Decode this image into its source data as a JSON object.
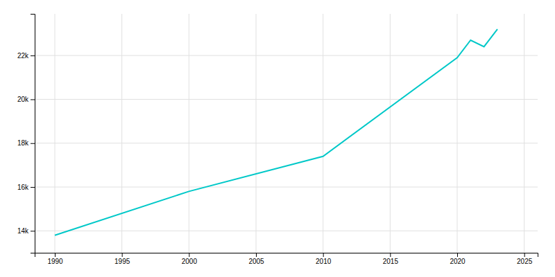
{
  "chart_data": {
    "type": "line",
    "x": [
      1990,
      2000,
      2010,
      2020,
      2021,
      2022,
      2023
    ],
    "values": [
      13800,
      15800,
      17400,
      21900,
      22700,
      22400,
      23200
    ],
    "color": "#00C8C8",
    "xlim": [
      1988.5,
      2026
    ],
    "ylim": [
      13000,
      23900
    ],
    "xticks": [
      1990,
      1995,
      2000,
      2005,
      2010,
      2015,
      2020,
      2025
    ],
    "yticks": [
      {
        "value": 14000,
        "label": "14k"
      },
      {
        "value": 16000,
        "label": "16k"
      },
      {
        "value": 18000,
        "label": "18k"
      },
      {
        "value": 20000,
        "label": "20k"
      },
      {
        "value": 22000,
        "label": "22k"
      }
    ],
    "grid": true
  }
}
